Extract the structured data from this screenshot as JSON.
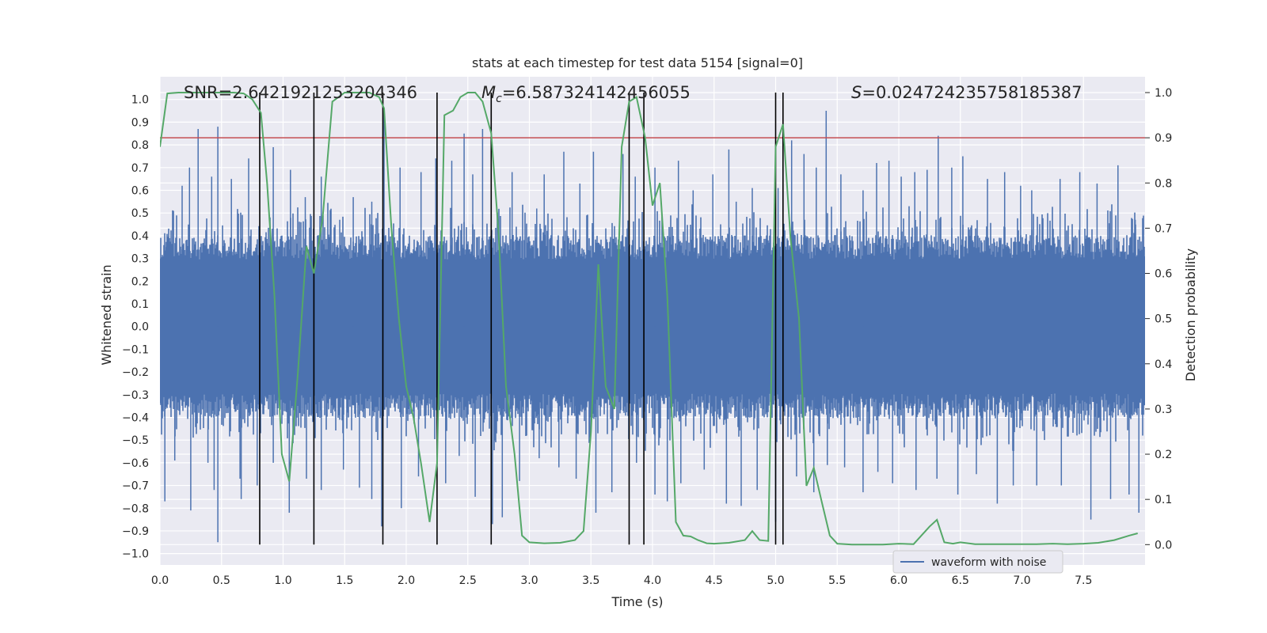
{
  "chart_data": {
    "type": "line",
    "title": "stats at each timestep for test data 5154 [signal=0]",
    "xlabel": "Time (s)",
    "ylabel": "Whitened strain",
    "y2label": "Detection probability",
    "xlim": [
      0,
      8
    ],
    "ylim": [
      -1.05,
      1.1
    ],
    "y2lim": [
      -0.045,
      1.035
    ],
    "xticks": [
      "0.0",
      "0.5",
      "1.0",
      "1.5",
      "2.0",
      "2.5",
      "3.0",
      "3.5",
      "4.0",
      "4.5",
      "5.0",
      "5.5",
      "6.0",
      "6.5",
      "7.0",
      "7.5"
    ],
    "yticks": [
      "1.0",
      "0.9",
      "0.8",
      "0.7",
      "0.6",
      "0.5",
      "0.4",
      "0.3",
      "0.2",
      "0.1",
      "0.0",
      "−0.1",
      "−0.2",
      "−0.3",
      "−0.4",
      "−0.5",
      "−0.6",
      "−0.7",
      "−0.8",
      "−0.9",
      "−1.0"
    ],
    "y2ticks": [
      "1.0",
      "0.9",
      "0.8",
      "0.7",
      "0.6",
      "0.5",
      "0.4",
      "0.3",
      "0.2",
      "0.1",
      "0.0"
    ],
    "annotations": {
      "snr": "SNR=2.6421921253204346",
      "mc_symbol": "M",
      "mc_sub": "c",
      "mc_value": "=6.587324142456055",
      "s_symbol": "S",
      "s_value": "=0.024724235758185387"
    },
    "threshold": 0.9,
    "vlines": [
      0.81,
      1.25,
      1.81,
      2.25,
      2.69,
      3.81,
      3.93,
      5.0,
      5.06
    ],
    "grid": true,
    "legend": {
      "position": "lower-right",
      "entries": [
        "waveform with noise"
      ]
    },
    "series": [
      {
        "name": "waveform with noise",
        "axis": "left",
        "style": "noise-envelope",
        "core_amplitude": 0.36,
        "peaks": [
          [
            0.05,
            0.35
          ],
          [
            0.18,
            0.62
          ],
          [
            0.24,
            0.7
          ],
          [
            0.31,
            0.87
          ],
          [
            0.42,
            0.66
          ],
          [
            0.47,
            0.88
          ],
          [
            0.58,
            0.65
          ],
          [
            0.72,
            0.74
          ],
          [
            0.92,
            0.79
          ],
          [
            1.06,
            0.69
          ],
          [
            1.18,
            0.57
          ],
          [
            1.31,
            0.66
          ],
          [
            1.46,
            0.47
          ],
          [
            1.57,
            0.57
          ],
          [
            1.72,
            0.55
          ],
          [
            1.82,
            0.95
          ],
          [
            1.95,
            0.7
          ],
          [
            2.12,
            0.68
          ],
          [
            2.24,
            0.74
          ],
          [
            2.37,
            0.73
          ],
          [
            2.47,
            0.85
          ],
          [
            2.54,
            0.67
          ],
          [
            2.62,
            0.87
          ],
          [
            2.86,
            0.68
          ],
          [
            3.06,
            0.52
          ],
          [
            3.12,
            0.67
          ],
          [
            3.28,
            0.77
          ],
          [
            3.41,
            0.63
          ],
          [
            3.52,
            0.77
          ],
          [
            3.76,
            0.76
          ],
          [
            3.86,
            0.66
          ],
          [
            4.02,
            0.7
          ],
          [
            4.21,
            0.73
          ],
          [
            4.33,
            0.6
          ],
          [
            4.49,
            0.67
          ],
          [
            4.62,
            0.78
          ],
          [
            4.68,
            0.55
          ],
          [
            4.81,
            0.61
          ],
          [
            5.02,
            0.61
          ],
          [
            5.13,
            0.82
          ],
          [
            5.23,
            0.76
          ],
          [
            5.33,
            0.7
          ],
          [
            5.41,
            0.95
          ],
          [
            5.53,
            0.67
          ],
          [
            5.71,
            0.6
          ],
          [
            5.82,
            0.72
          ],
          [
            5.92,
            0.73
          ],
          [
            6.02,
            0.66
          ],
          [
            6.13,
            0.68
          ],
          [
            6.23,
            0.69
          ],
          [
            6.32,
            0.84
          ],
          [
            6.43,
            0.7
          ],
          [
            6.52,
            0.75
          ],
          [
            6.72,
            0.65
          ],
          [
            6.86,
            0.68
          ],
          [
            6.99,
            0.62
          ],
          [
            7.08,
            0.6
          ],
          [
            7.31,
            0.65
          ],
          [
            7.47,
            0.68
          ],
          [
            7.61,
            0.63
          ],
          [
            7.78,
            0.71
          ],
          [
            7.92,
            0.47
          ]
        ],
        "troughs": [
          [
            0.04,
            -0.77
          ],
          [
            0.12,
            -0.59
          ],
          [
            0.25,
            -0.81
          ],
          [
            0.39,
            -0.6
          ],
          [
            0.44,
            -0.72
          ],
          [
            0.47,
            -0.95
          ],
          [
            0.65,
            -0.67
          ],
          [
            0.66,
            -0.76
          ],
          [
            0.79,
            -0.7
          ],
          [
            0.92,
            -0.6
          ],
          [
            1.05,
            -0.82
          ],
          [
            1.19,
            -0.67
          ],
          [
            1.31,
            -0.72
          ],
          [
            1.49,
            -0.63
          ],
          [
            1.62,
            -0.71
          ],
          [
            1.72,
            -0.76
          ],
          [
            1.8,
            -0.88
          ],
          [
            1.96,
            -0.8
          ],
          [
            2.1,
            -0.66
          ],
          [
            2.32,
            -0.69
          ],
          [
            2.43,
            -0.57
          ],
          [
            2.56,
            -0.75
          ],
          [
            2.7,
            -0.87
          ],
          [
            2.78,
            -0.84
          ],
          [
            2.92,
            -0.68
          ],
          [
            3.08,
            -0.58
          ],
          [
            3.24,
            -0.62
          ],
          [
            3.38,
            -0.67
          ],
          [
            3.54,
            -0.82
          ],
          [
            3.67,
            -0.73
          ],
          [
            3.87,
            -0.6
          ],
          [
            4.02,
            -0.74
          ],
          [
            4.12,
            -0.77
          ],
          [
            4.23,
            -0.69
          ],
          [
            4.42,
            -0.63
          ],
          [
            4.6,
            -0.78
          ],
          [
            4.72,
            -0.79
          ],
          [
            4.85,
            -0.72
          ],
          [
            5.0,
            -0.86
          ],
          [
            5.17,
            -0.66
          ],
          [
            5.31,
            -0.73
          ],
          [
            5.42,
            -0.61
          ],
          [
            5.56,
            -0.62
          ],
          [
            5.71,
            -0.73
          ],
          [
            5.83,
            -0.64
          ],
          [
            5.95,
            -0.69
          ],
          [
            6.14,
            -0.72
          ],
          [
            6.31,
            -0.67
          ],
          [
            6.48,
            -0.74
          ],
          [
            6.63,
            -0.65
          ],
          [
            6.8,
            -0.78
          ],
          [
            6.93,
            -0.7
          ],
          [
            7.12,
            -0.7
          ],
          [
            7.32,
            -0.7
          ],
          [
            7.56,
            -0.85
          ],
          [
            7.72,
            -0.76
          ],
          [
            7.87,
            -0.74
          ],
          [
            7.95,
            -0.82
          ]
        ]
      },
      {
        "name": "Detection probability",
        "axis": "right",
        "x": [
          0.0,
          0.06,
          0.15,
          0.3,
          0.45,
          0.6,
          0.68,
          0.75,
          0.82,
          0.87,
          0.93,
          0.99,
          1.05,
          1.12,
          1.19,
          1.25,
          1.32,
          1.4,
          1.5,
          1.6,
          1.7,
          1.78,
          1.82,
          1.88,
          1.94,
          2.0,
          2.06,
          2.12,
          2.19,
          2.25,
          2.31,
          2.38,
          2.44,
          2.5,
          2.56,
          2.62,
          2.69,
          2.75,
          2.81,
          2.88,
          2.94,
          3.0,
          3.12,
          3.25,
          3.37,
          3.44,
          3.5,
          3.56,
          3.62,
          3.69,
          3.75,
          3.81,
          3.87,
          3.94,
          4.0,
          4.06,
          4.12,
          4.19,
          4.25,
          4.31,
          4.37,
          4.44,
          4.5,
          4.62,
          4.75,
          4.81,
          4.87,
          4.94,
          5.0,
          5.06,
          5.12,
          5.19,
          5.25,
          5.31,
          5.37,
          5.44,
          5.5,
          5.62,
          5.75,
          5.87,
          6.0,
          6.12,
          6.25,
          6.31,
          6.37,
          6.44,
          6.5,
          6.62,
          6.75,
          6.87,
          7.0,
          7.12,
          7.25,
          7.37,
          7.5,
          7.62,
          7.75,
          7.87,
          7.94
        ],
        "values": [
          0.88,
          0.998,
          1.0,
          1.0,
          1.0,
          1.0,
          0.998,
          0.985,
          0.955,
          0.8,
          0.55,
          0.2,
          0.14,
          0.38,
          0.66,
          0.6,
          0.72,
          0.98,
          1.0,
          1.0,
          1.0,
          0.99,
          0.965,
          0.7,
          0.5,
          0.35,
          0.28,
          0.18,
          0.05,
          0.18,
          0.95,
          0.96,
          0.99,
          1.0,
          1.0,
          0.98,
          0.91,
          0.69,
          0.35,
          0.2,
          0.02,
          0.005,
          0.003,
          0.004,
          0.01,
          0.03,
          0.25,
          0.62,
          0.35,
          0.3,
          0.88,
          0.98,
          0.99,
          0.9,
          0.75,
          0.8,
          0.55,
          0.05,
          0.02,
          0.018,
          0.01,
          0.003,
          0.002,
          0.004,
          0.01,
          0.03,
          0.01,
          0.008,
          0.88,
          0.93,
          0.68,
          0.5,
          0.13,
          0.17,
          0.1,
          0.02,
          0.002,
          0.0,
          0.0,
          0.0,
          0.002,
          0.001,
          0.04,
          0.055,
          0.005,
          0.002,
          0.005,
          0.001,
          0.001,
          0.001,
          0.001,
          0.001,
          0.002,
          0.001,
          0.002,
          0.004,
          0.01,
          0.02,
          0.025
        ]
      }
    ]
  }
}
